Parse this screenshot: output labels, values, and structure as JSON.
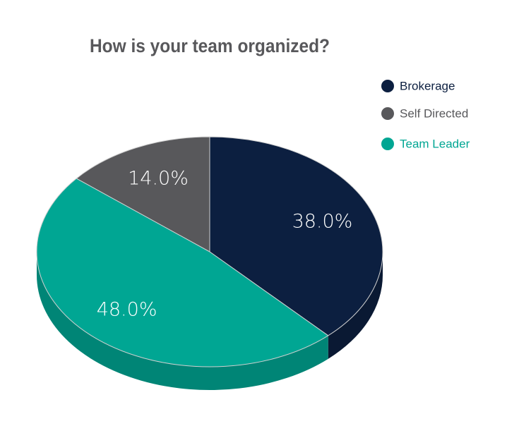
{
  "chart_data": {
    "type": "pie",
    "title": "How is your team organized?",
    "categories": [
      "Brokerage",
      "Self Directed",
      "Team Leader"
    ],
    "values": [
      38,
      14,
      48
    ],
    "value_labels": [
      "38.0%",
      "14.0%",
      "48.0%"
    ],
    "colors": [
      "#0c1f40",
      "#58585b",
      "#00a693"
    ],
    "legend": "top-right"
  }
}
